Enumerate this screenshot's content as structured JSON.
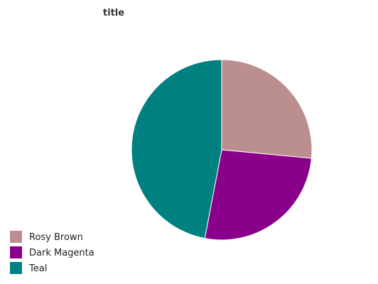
{
  "chart_data": {
    "type": "pie",
    "title": "title",
    "slices": [
      {
        "label": "Rosy Brown",
        "value": 26.5,
        "color": "#bc8f8f"
      },
      {
        "label": "Dark Magenta",
        "value": 26.5,
        "color": "#8b008b"
      },
      {
        "label": "Teal",
        "value": 47.0,
        "color": "#008080"
      }
    ],
    "legend_position": "bottom-left"
  }
}
